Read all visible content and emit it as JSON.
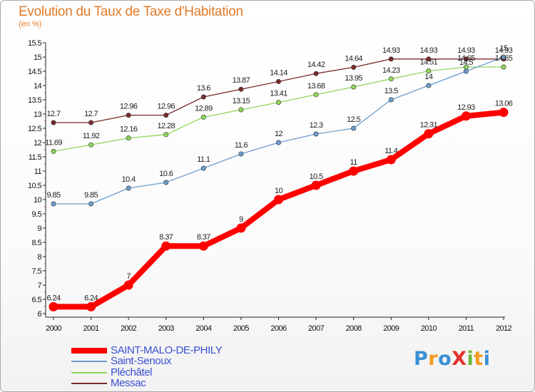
{
  "title": "Evolution du Taux de Taxe d'Habitation",
  "subtitle": "(en %)",
  "chart_data": {
    "type": "line",
    "title": "Evolution du Taux de Taxe d'Habitation",
    "ylabel": "(en %)",
    "x": [
      "2000",
      "2001",
      "2002",
      "2003",
      "2004",
      "2005",
      "2006",
      "2007",
      "2008",
      "2009",
      "2010",
      "2011",
      "2012"
    ],
    "ylim": [
      6,
      15.5
    ],
    "yticks": [
      "6",
      "6.5",
      "7",
      "7.5",
      "8",
      "8.5",
      "9",
      "9.5",
      "10",
      "10.5",
      "11",
      "11.5",
      "12",
      "12.5",
      "13",
      "13.5",
      "14",
      "14.5",
      "15",
      "15.5"
    ],
    "grid": false,
    "legend_position": "bottom-left",
    "series": [
      {
        "name": "SAINT-MALO-DE-PHILY",
        "color": "#ff0000",
        "values": [
          6.24,
          6.24,
          7,
          8.37,
          8.37,
          9,
          10,
          10.5,
          11,
          11.4,
          12.31,
          12.93,
          13.06
        ],
        "labels": [
          "6.24",
          "6.24",
          "7",
          "8.37",
          "8.37",
          "9",
          "10",
          "10.5",
          "11",
          "11.4",
          "12.31",
          "12.93",
          "13.06"
        ]
      },
      {
        "name": "Saint-Senoux",
        "color": "#6d9ecd",
        "values": [
          9.85,
          9.85,
          10.4,
          10.6,
          11.1,
          11.6,
          12,
          12.3,
          12.5,
          13.5,
          14,
          14.5,
          15
        ],
        "labels": [
          "9.85",
          "9.85",
          "10.4",
          "10.6",
          "11.1",
          "11.6",
          "12",
          "12.3",
          "12.5",
          "13.5",
          "14",
          "14.5",
          "15"
        ]
      },
      {
        "name": "Pléchâtel",
        "color": "#8fd65a",
        "values": [
          11.69,
          11.92,
          12.16,
          12.28,
          12.89,
          13.15,
          13.41,
          13.68,
          13.95,
          14.23,
          14.51,
          14.65,
          14.65
        ],
        "labels": [
          "11.69",
          "11.92",
          "12.16",
          "12.28",
          "12.89",
          "13.15",
          "13.41",
          "13.68",
          "13.95",
          "14.23",
          "14.51",
          "14.65",
          "14.65"
        ]
      },
      {
        "name": "Messac",
        "color": "#7a2b2b",
        "values": [
          12.7,
          12.7,
          12.96,
          12.96,
          13.6,
          13.87,
          14.14,
          14.42,
          14.64,
          14.93,
          14.93,
          14.93,
          14.93
        ],
        "labels": [
          "12.7",
          "12.7",
          "12.96",
          "12.96",
          "13.6",
          "13.87",
          "14.14",
          "14.42",
          "14.64",
          "14.93",
          "14.93",
          "14.93",
          "14.93"
        ]
      }
    ]
  },
  "legend": [
    {
      "label": "SAINT-MALO-DE-PHILY",
      "color": "#ff0000"
    },
    {
      "label": "Saint-Senoux",
      "color": "#6d9ecd"
    },
    {
      "label": "Pléchâtel",
      "color": "#8fd65a"
    },
    {
      "label": "Messac",
      "color": "#7a2b2b"
    }
  ],
  "logo": {
    "text": "Proxiti",
    "letters": [
      {
        "ch": "P",
        "color": "#3a8fd6"
      },
      {
        "ch": "r",
        "color": "#f29a1f"
      },
      {
        "ch": "o",
        "color": "#3a8fd6"
      },
      {
        "ch": "X",
        "color": "#e2342c"
      },
      {
        "ch": "i",
        "color": "#69b83a"
      },
      {
        "ch": "t",
        "color": "#f29a1f"
      },
      {
        "ch": "i",
        "color": "#3a8fd6"
      }
    ]
  }
}
